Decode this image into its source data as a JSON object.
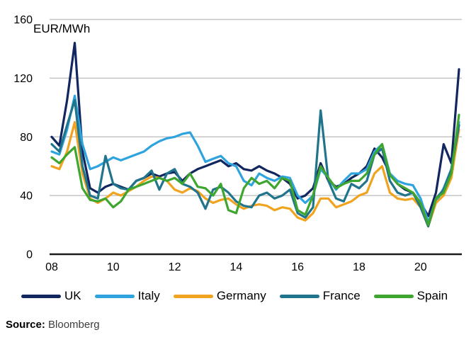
{
  "source": {
    "label": "Source:",
    "value": "Bloomberg"
  },
  "chart_data": {
    "type": "line",
    "title": "",
    "xlabel": "",
    "ylabel": "EUR/MWh",
    "xlim": [
      2008,
      2021.25
    ],
    "ylim": [
      0,
      160
    ],
    "grid": "horizontal-gray-lines",
    "legend_position": "bottom",
    "x_unit": "year",
    "x": [
      2008,
      2008.25,
      2008.5,
      2008.75,
      2009,
      2009.25,
      2009.5,
      2009.75,
      2010,
      2010.25,
      2010.5,
      2010.75,
      2011,
      2011.25,
      2011.5,
      2011.75,
      2012,
      2012.25,
      2012.5,
      2012.75,
      2013,
      2013.25,
      2013.5,
      2013.75,
      2014,
      2014.25,
      2014.5,
      2014.75,
      2015,
      2015.25,
      2015.5,
      2015.75,
      2016,
      2016.25,
      2016.5,
      2016.75,
      2017,
      2017.25,
      2017.5,
      2017.75,
      2018,
      2018.25,
      2018.5,
      2018.75,
      2019,
      2019.25,
      2019.5,
      2019.75,
      2020,
      2020.25,
      2020.5,
      2020.75,
      2021,
      2021.25
    ],
    "x_ticks": [
      {
        "label": "08",
        "value": 2008
      },
      {
        "label": "10",
        "value": 2010
      },
      {
        "label": "12",
        "value": 2012
      },
      {
        "label": "14",
        "value": 2014
      },
      {
        "label": "16",
        "value": 2016
      },
      {
        "label": "18",
        "value": 2018
      },
      {
        "label": "20",
        "value": 2020
      }
    ],
    "y_ticks": [
      {
        "label": "0",
        "value": 0
      },
      {
        "label": "40",
        "value": 40
      },
      {
        "label": "80",
        "value": 80
      },
      {
        "label": "120",
        "value": 120
      },
      {
        "label": "160",
        "value": 160
      }
    ],
    "series": [
      {
        "name": "UK",
        "color": "#12265f",
        "values": [
          80,
          74,
          105,
          144,
          70,
          45,
          42,
          46,
          48,
          46,
          44,
          50,
          52,
          55,
          53,
          55,
          56,
          50,
          55,
          58,
          60,
          62,
          64,
          60,
          62,
          58,
          57,
          60,
          57,
          55,
          52,
          48,
          38,
          40,
          45,
          62,
          50,
          46,
          48,
          52,
          55,
          60,
          72,
          66,
          55,
          48,
          44,
          42,
          35,
          26,
          42,
          75,
          62,
          126
        ]
      },
      {
        "name": "Italy",
        "color": "#2fa3de",
        "values": [
          70,
          68,
          85,
          108,
          75,
          58,
          60,
          63,
          66,
          64,
          66,
          68,
          70,
          74,
          77,
          79,
          80,
          82,
          83,
          74,
          63,
          65,
          67,
          62,
          60,
          50,
          47,
          55,
          52,
          50,
          53,
          52,
          40,
          35,
          40,
          58,
          52,
          44,
          50,
          55,
          55,
          58,
          70,
          75,
          55,
          50,
          48,
          47,
          38,
          22,
          35,
          45,
          58,
          90
        ]
      },
      {
        "name": "Germany",
        "color": "#f0a31e",
        "values": [
          60,
          58,
          70,
          90,
          55,
          38,
          35,
          38,
          42,
          40,
          43,
          46,
          50,
          53,
          52,
          50,
          44,
          42,
          45,
          43,
          38,
          35,
          37,
          38,
          34,
          31,
          33,
          34,
          33,
          30,
          32,
          31,
          25,
          23,
          28,
          38,
          38,
          32,
          34,
          36,
          40,
          42,
          55,
          60,
          42,
          38,
          37,
          38,
          32,
          19,
          35,
          40,
          52,
          85
        ]
      },
      {
        "name": "France",
        "color": "#20748c",
        "values": [
          75,
          70,
          88,
          105,
          60,
          40,
          38,
          67,
          48,
          45,
          44,
          50,
          52,
          57,
          44,
          55,
          58,
          48,
          46,
          42,
          31,
          44,
          46,
          42,
          36,
          33,
          32,
          40,
          42,
          38,
          40,
          44,
          28,
          25,
          32,
          98,
          50,
          38,
          36,
          48,
          45,
          50,
          68,
          72,
          50,
          42,
          40,
          42,
          32,
          19,
          38,
          44,
          58,
          88
        ]
      },
      {
        "name": "Spain",
        "color": "#3ea62e",
        "values": [
          66,
          62,
          68,
          73,
          45,
          37,
          36,
          38,
          32,
          36,
          44,
          46,
          48,
          50,
          52,
          50,
          52,
          48,
          55,
          46,
          45,
          40,
          48,
          30,
          28,
          45,
          52,
          48,
          50,
          45,
          52,
          50,
          30,
          27,
          40,
          60,
          52,
          45,
          48,
          50,
          50,
          55,
          68,
          75,
          54,
          48,
          45,
          42,
          35,
          20,
          38,
          42,
          55,
          95
        ]
      }
    ]
  }
}
